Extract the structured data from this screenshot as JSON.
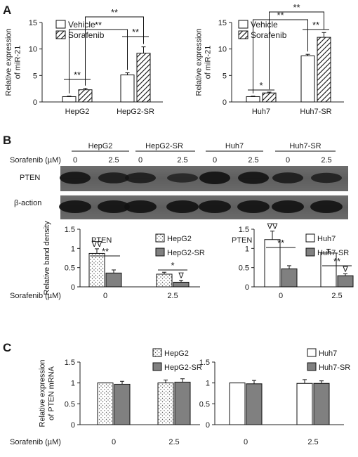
{
  "panel_letters": {
    "a": "A",
    "b": "B",
    "c": "C"
  },
  "panel_b_blot": {
    "groups": [
      "HepG2",
      "HepG2-SR",
      "Huh7",
      "Huh7-SR"
    ],
    "treatment_label": "Sorafenib (µM)",
    "doses": [
      "0",
      "2.5",
      "0",
      "2.5",
      "0",
      "2.5",
      "0",
      "2.5"
    ],
    "band_labels": [
      "PTEN",
      "β-action"
    ]
  },
  "chart_data": [
    {
      "id": "A-left",
      "type": "bar",
      "categories": [
        "HepG2",
        "HepG2-SR"
      ],
      "series": [
        {
          "name": "Vehicle",
          "values": [
            1.0,
            5.1
          ],
          "errors": [
            0.1,
            0.4
          ]
        },
        {
          "name": "Sorafenib",
          "values": [
            2.3,
            9.2
          ],
          "errors": [
            0.25,
            1.2
          ]
        }
      ],
      "ylabel": "Relative expression of miR-21",
      "ylim": [
        0,
        15
      ],
      "yticks": [
        "0",
        "5",
        "10",
        "15"
      ],
      "legend": "top-left",
      "sig": [
        "**",
        "**",
        "**",
        "**"
      ]
    },
    {
      "id": "A-right",
      "type": "bar",
      "categories": [
        "Huh7",
        "Huh7-SR"
      ],
      "series": [
        {
          "name": "Vehicle",
          "values": [
            1.0,
            8.7
          ],
          "errors": [
            0.1,
            0.3
          ]
        },
        {
          "name": "Sorafenib",
          "values": [
            1.7,
            12.2
          ],
          "errors": [
            0.15,
            0.9
          ]
        }
      ],
      "ylabel": "Relative expression of miR-21",
      "ylim": [
        0,
        15
      ],
      "yticks": [
        "0",
        "5",
        "10",
        "15"
      ],
      "legend": "top-left",
      "sig": [
        "*",
        "**",
        "**",
        "**"
      ]
    },
    {
      "id": "B-left",
      "type": "bar",
      "title": "PTEN",
      "categories": [
        "0",
        "2.5"
      ],
      "series": [
        {
          "name": "HepG2",
          "values": [
            0.87,
            0.33
          ],
          "errors": [
            0.12,
            0.05
          ]
        },
        {
          "name": "HepG2-SR",
          "values": [
            0.36,
            0.12
          ],
          "errors": [
            0.08,
            0.05
          ]
        }
      ],
      "ylabel": "Relative band density",
      "xlabel": "Sorafenib (µM)",
      "ylim": [
        0,
        1.5
      ],
      "yticks": [
        "0",
        "0.5",
        "1",
        "1.5"
      ],
      "legend": "top-right",
      "sig": [
        "**",
        "*"
      ],
      "markers": [
        "∇∇",
        "∇"
      ]
    },
    {
      "id": "B-right",
      "type": "bar",
      "title": "PTEN",
      "categories": [
        "0",
        "2.5"
      ],
      "series": [
        {
          "name": "Huh7",
          "values": [
            1.23,
            0.88
          ],
          "errors": [
            0.22,
            0.1
          ]
        },
        {
          "name": "Huh7-SR",
          "values": [
            0.47,
            0.29
          ],
          "errors": [
            0.08,
            0.05
          ]
        }
      ],
      "ylim": [
        0,
        1.5
      ],
      "yticks": [
        "0",
        "0.5",
        "1",
        "1.5"
      ],
      "legend": "top-right",
      "sig": [
        "**",
        "**"
      ],
      "markers": [
        "∇∇",
        "∇"
      ]
    },
    {
      "id": "C-left",
      "type": "bar",
      "categories": [
        "0",
        "2.5"
      ],
      "series": [
        {
          "name": "HepG2",
          "values": [
            1.0,
            1.0
          ],
          "errors": [
            0.0,
            0.07
          ]
        },
        {
          "name": "HepG2-SR",
          "values": [
            0.97,
            1.02
          ],
          "errors": [
            0.07,
            0.08
          ]
        }
      ],
      "ylabel": "Relative expression of PTEN mRNA",
      "xlabel": "Sorafenib (µM)",
      "ylim": [
        0,
        1.5
      ],
      "yticks": [
        "0",
        "0.5",
        "1",
        "1.5"
      ],
      "legend": "top-right"
    },
    {
      "id": "C-right",
      "type": "bar",
      "categories": [
        "0",
        "2.5"
      ],
      "series": [
        {
          "name": "Huh7",
          "values": [
            1.0,
            0.99
          ],
          "errors": [
            0.0,
            0.09
          ]
        },
        {
          "name": "Huh7-SR",
          "values": [
            0.98,
            0.99
          ],
          "errors": [
            0.08,
            0.06
          ]
        }
      ],
      "ylim": [
        0,
        1.5
      ],
      "yticks": [
        "0",
        "0.5",
        "1",
        "1.5"
      ],
      "legend": "top-right"
    }
  ]
}
